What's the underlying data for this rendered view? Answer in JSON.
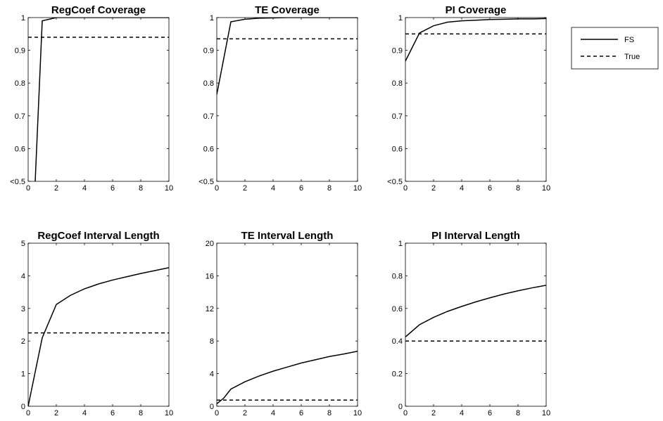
{
  "chart_data": [
    {
      "type": "line",
      "title": "RegCoef Coverage",
      "xlim": [
        0,
        10
      ],
      "ylim": [
        0.5,
        1
      ],
      "x_ticks": [
        0,
        2,
        4,
        6,
        8,
        10
      ],
      "y_ticks": [
        0.5,
        0.6,
        0.7,
        0.8,
        0.9,
        1
      ],
      "y_tick_labels": [
        "<0.5",
        "0.6",
        "0.7",
        "0.8",
        "0.9",
        "1"
      ],
      "series": [
        {
          "name": "FS",
          "style": "solid",
          "x": [
            0.5,
            1,
            2,
            3,
            4,
            5,
            6,
            7,
            8,
            9,
            10
          ],
          "y": [
            0.5,
            0.99,
            1,
            1,
            1,
            1,
            1,
            1,
            1,
            1,
            1
          ]
        },
        {
          "name": "True",
          "style": "dashed",
          "x": [
            0,
            10
          ],
          "y": [
            0.94,
            0.94
          ]
        }
      ]
    },
    {
      "type": "line",
      "title": "TE Coverage",
      "xlim": [
        0,
        10
      ],
      "ylim": [
        0.5,
        1
      ],
      "x_ticks": [
        0,
        2,
        4,
        6,
        8,
        10
      ],
      "y_ticks": [
        0.5,
        0.6,
        0.7,
        0.8,
        0.9,
        1
      ],
      "y_tick_labels": [
        "<0.5",
        "0.6",
        "0.7",
        "0.8",
        "0.9",
        "1"
      ],
      "series": [
        {
          "name": "FS",
          "style": "solid",
          "x": [
            0,
            1,
            2,
            3,
            4,
            5,
            6,
            7,
            8,
            9,
            10
          ],
          "y": [
            0.765,
            0.987,
            0.995,
            0.998,
            0.999,
            1,
            1,
            1,
            1,
            1,
            1
          ]
        },
        {
          "name": "True",
          "style": "dashed",
          "x": [
            0,
            10
          ],
          "y": [
            0.935,
            0.935
          ]
        }
      ]
    },
    {
      "type": "line",
      "title": "PI Coverage",
      "xlim": [
        0,
        10
      ],
      "ylim": [
        0.5,
        1
      ],
      "x_ticks": [
        0,
        2,
        4,
        6,
        8,
        10
      ],
      "y_ticks": [
        0.5,
        0.6,
        0.7,
        0.8,
        0.9,
        1
      ],
      "y_tick_labels": [
        "<0.5",
        "0.6",
        "0.7",
        "0.8",
        "0.9",
        "1"
      ],
      "series": [
        {
          "name": "FS",
          "style": "solid",
          "x": [
            0,
            1,
            2,
            3,
            4,
            5,
            6,
            7,
            8,
            9,
            10
          ],
          "y": [
            0.867,
            0.953,
            0.975,
            0.986,
            0.99,
            0.992,
            0.994,
            0.995,
            0.996,
            0.996,
            0.997
          ]
        },
        {
          "name": "True",
          "style": "dashed",
          "x": [
            0,
            10
          ],
          "y": [
            0.95,
            0.95
          ]
        }
      ]
    },
    {
      "type": "line",
      "title": "RegCoef Interval Length",
      "xlim": [
        0,
        10
      ],
      "ylim": [
        0,
        5
      ],
      "x_ticks": [
        0,
        2,
        4,
        6,
        8,
        10
      ],
      "y_ticks": [
        0,
        1,
        2,
        3,
        4,
        5
      ],
      "y_tick_labels": [
        "0",
        "1",
        "2",
        "3",
        "4",
        "5"
      ],
      "series": [
        {
          "name": "FS",
          "style": "solid",
          "x": [
            0,
            1,
            2,
            3,
            4,
            5,
            6,
            7,
            8,
            9,
            10
          ],
          "y": [
            0,
            2.1,
            3.12,
            3.4,
            3.6,
            3.75,
            3.87,
            3.97,
            4.07,
            4.16,
            4.25
          ]
        },
        {
          "name": "True",
          "style": "dashed",
          "x": [
            0,
            10
          ],
          "y": [
            2.25,
            2.25
          ]
        }
      ]
    },
    {
      "type": "line",
      "title": "TE Interval Length",
      "xlim": [
        0,
        10
      ],
      "ylim": [
        0,
        20
      ],
      "x_ticks": [
        0,
        2,
        4,
        6,
        8,
        10
      ],
      "y_ticks": [
        0,
        4,
        8,
        12,
        16,
        20
      ],
      "y_tick_labels": [
        "0",
        "4",
        "8",
        "12",
        "16",
        "20"
      ],
      "series": [
        {
          "name": "FS",
          "style": "solid",
          "x": [
            0,
            0.5,
            1,
            2,
            3,
            4,
            5,
            6,
            7,
            8,
            9,
            10
          ],
          "y": [
            0.3,
            1.0,
            2.1,
            3.0,
            3.7,
            4.3,
            4.8,
            5.3,
            5.7,
            6.1,
            6.4,
            6.75
          ]
        },
        {
          "name": "True",
          "style": "dashed",
          "x": [
            0,
            10
          ],
          "y": [
            0.75,
            0.75
          ]
        }
      ]
    },
    {
      "type": "line",
      "title": "PI Interval Length",
      "xlim": [
        0,
        10
      ],
      "ylim": [
        0,
        1
      ],
      "x_ticks": [
        0,
        2,
        4,
        6,
        8,
        10
      ],
      "y_ticks": [
        0,
        0.2,
        0.4,
        0.6,
        0.8,
        1
      ],
      "y_tick_labels": [
        "0",
        "0.2",
        "0.4",
        "0.6",
        "0.8",
        "1"
      ],
      "series": [
        {
          "name": "FS",
          "style": "solid",
          "x": [
            0,
            1,
            2,
            3,
            4,
            5,
            6,
            7,
            8,
            9,
            10
          ],
          "y": [
            0.425,
            0.5,
            0.545,
            0.582,
            0.612,
            0.64,
            0.665,
            0.688,
            0.708,
            0.726,
            0.742
          ]
        },
        {
          "name": "True",
          "style": "dashed",
          "x": [
            0,
            10
          ],
          "y": [
            0.4,
            0.4
          ]
        }
      ]
    }
  ],
  "legend": {
    "position": "top-right",
    "entries": [
      {
        "label": "FS",
        "style": "solid"
      },
      {
        "label": "True",
        "style": "dashed"
      }
    ]
  }
}
